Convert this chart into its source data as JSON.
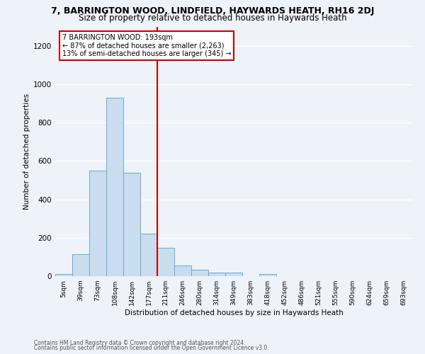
{
  "title": "7, BARRINGTON WOOD, LINDFIELD, HAYWARDS HEATH, RH16 2DJ",
  "subtitle": "Size of property relative to detached houses in Haywards Heath",
  "xlabel": "Distribution of detached houses by size in Haywards Heath",
  "ylabel": "Number of detached properties",
  "bar_labels": [
    "5sqm",
    "39sqm",
    "73sqm",
    "108sqm",
    "142sqm",
    "177sqm",
    "211sqm",
    "246sqm",
    "280sqm",
    "314sqm",
    "349sqm",
    "383sqm",
    "418sqm",
    "452sqm",
    "486sqm",
    "521sqm",
    "555sqm",
    "590sqm",
    "624sqm",
    "659sqm",
    "693sqm"
  ],
  "bar_values": [
    10,
    115,
    548,
    930,
    540,
    220,
    148,
    55,
    33,
    20,
    20,
    0,
    10,
    0,
    0,
    0,
    0,
    0,
    0,
    0,
    0
  ],
  "bar_color": "#c9ddef",
  "bar_edge_color": "#6aaad4",
  "vline_color": "#cc0000",
  "annotation_text": "7 BARRINGTON WOOD: 193sqm\n← 87% of detached houses are smaller (2,263)\n13% of semi-detached houses are larger (345) →",
  "annotation_box_color": "#ffffff",
  "annotation_box_edgecolor": "#cc0000",
  "ylim": [
    0,
    1300
  ],
  "yticks": [
    0,
    200,
    400,
    600,
    800,
    1000,
    1200
  ],
  "footer1": "Contains HM Land Registry data © Crown copyright and database right 2024.",
  "footer2": "Contains public sector information licensed under the Open Government Licence v3.0.",
  "bg_color": "#eef2f9",
  "grid_color": "#ffffff",
  "title_fontsize": 9,
  "subtitle_fontsize": 8.5
}
